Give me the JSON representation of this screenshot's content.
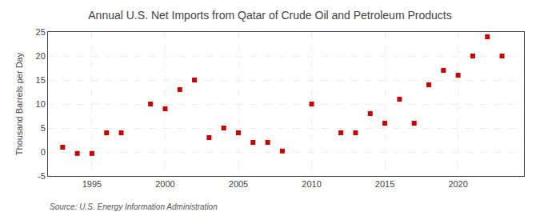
{
  "chart_data": {
    "type": "scatter",
    "title": "Annual U.S. Net Imports from Qatar of Crude Oil and Petroleum Products",
    "ylabel": "Thousand Barrels per Day",
    "annotations": [
      "Source: U.S. Energy Information Administration"
    ],
    "x": [
      1993,
      1994,
      1995,
      1996,
      1997,
      1999,
      2000,
      2001,
      2002,
      2003,
      2004,
      2005,
      2006,
      2007,
      2008,
      2010,
      2012,
      2013,
      2014,
      2015,
      2016,
      2017,
      2018,
      2019,
      2020,
      2021,
      2022,
      2023
    ],
    "values": [
      1,
      -0.3,
      -0.3,
      4,
      4,
      10,
      9,
      13,
      15,
      3,
      5,
      4,
      2,
      2,
      0.2,
      10,
      4,
      4,
      8,
      6,
      11,
      6,
      14,
      17,
      16,
      20,
      24,
      20
    ],
    "color": "#cc0000",
    "marker": "square",
    "xlim": [
      1992,
      2024.5
    ],
    "ylim": [
      -5,
      25
    ],
    "xticks": [
      1995,
      2000,
      2005,
      2010,
      2015,
      2020
    ],
    "yticks": [
      -5,
      0,
      5,
      10,
      15,
      20,
      25
    ],
    "grid": true
  }
}
